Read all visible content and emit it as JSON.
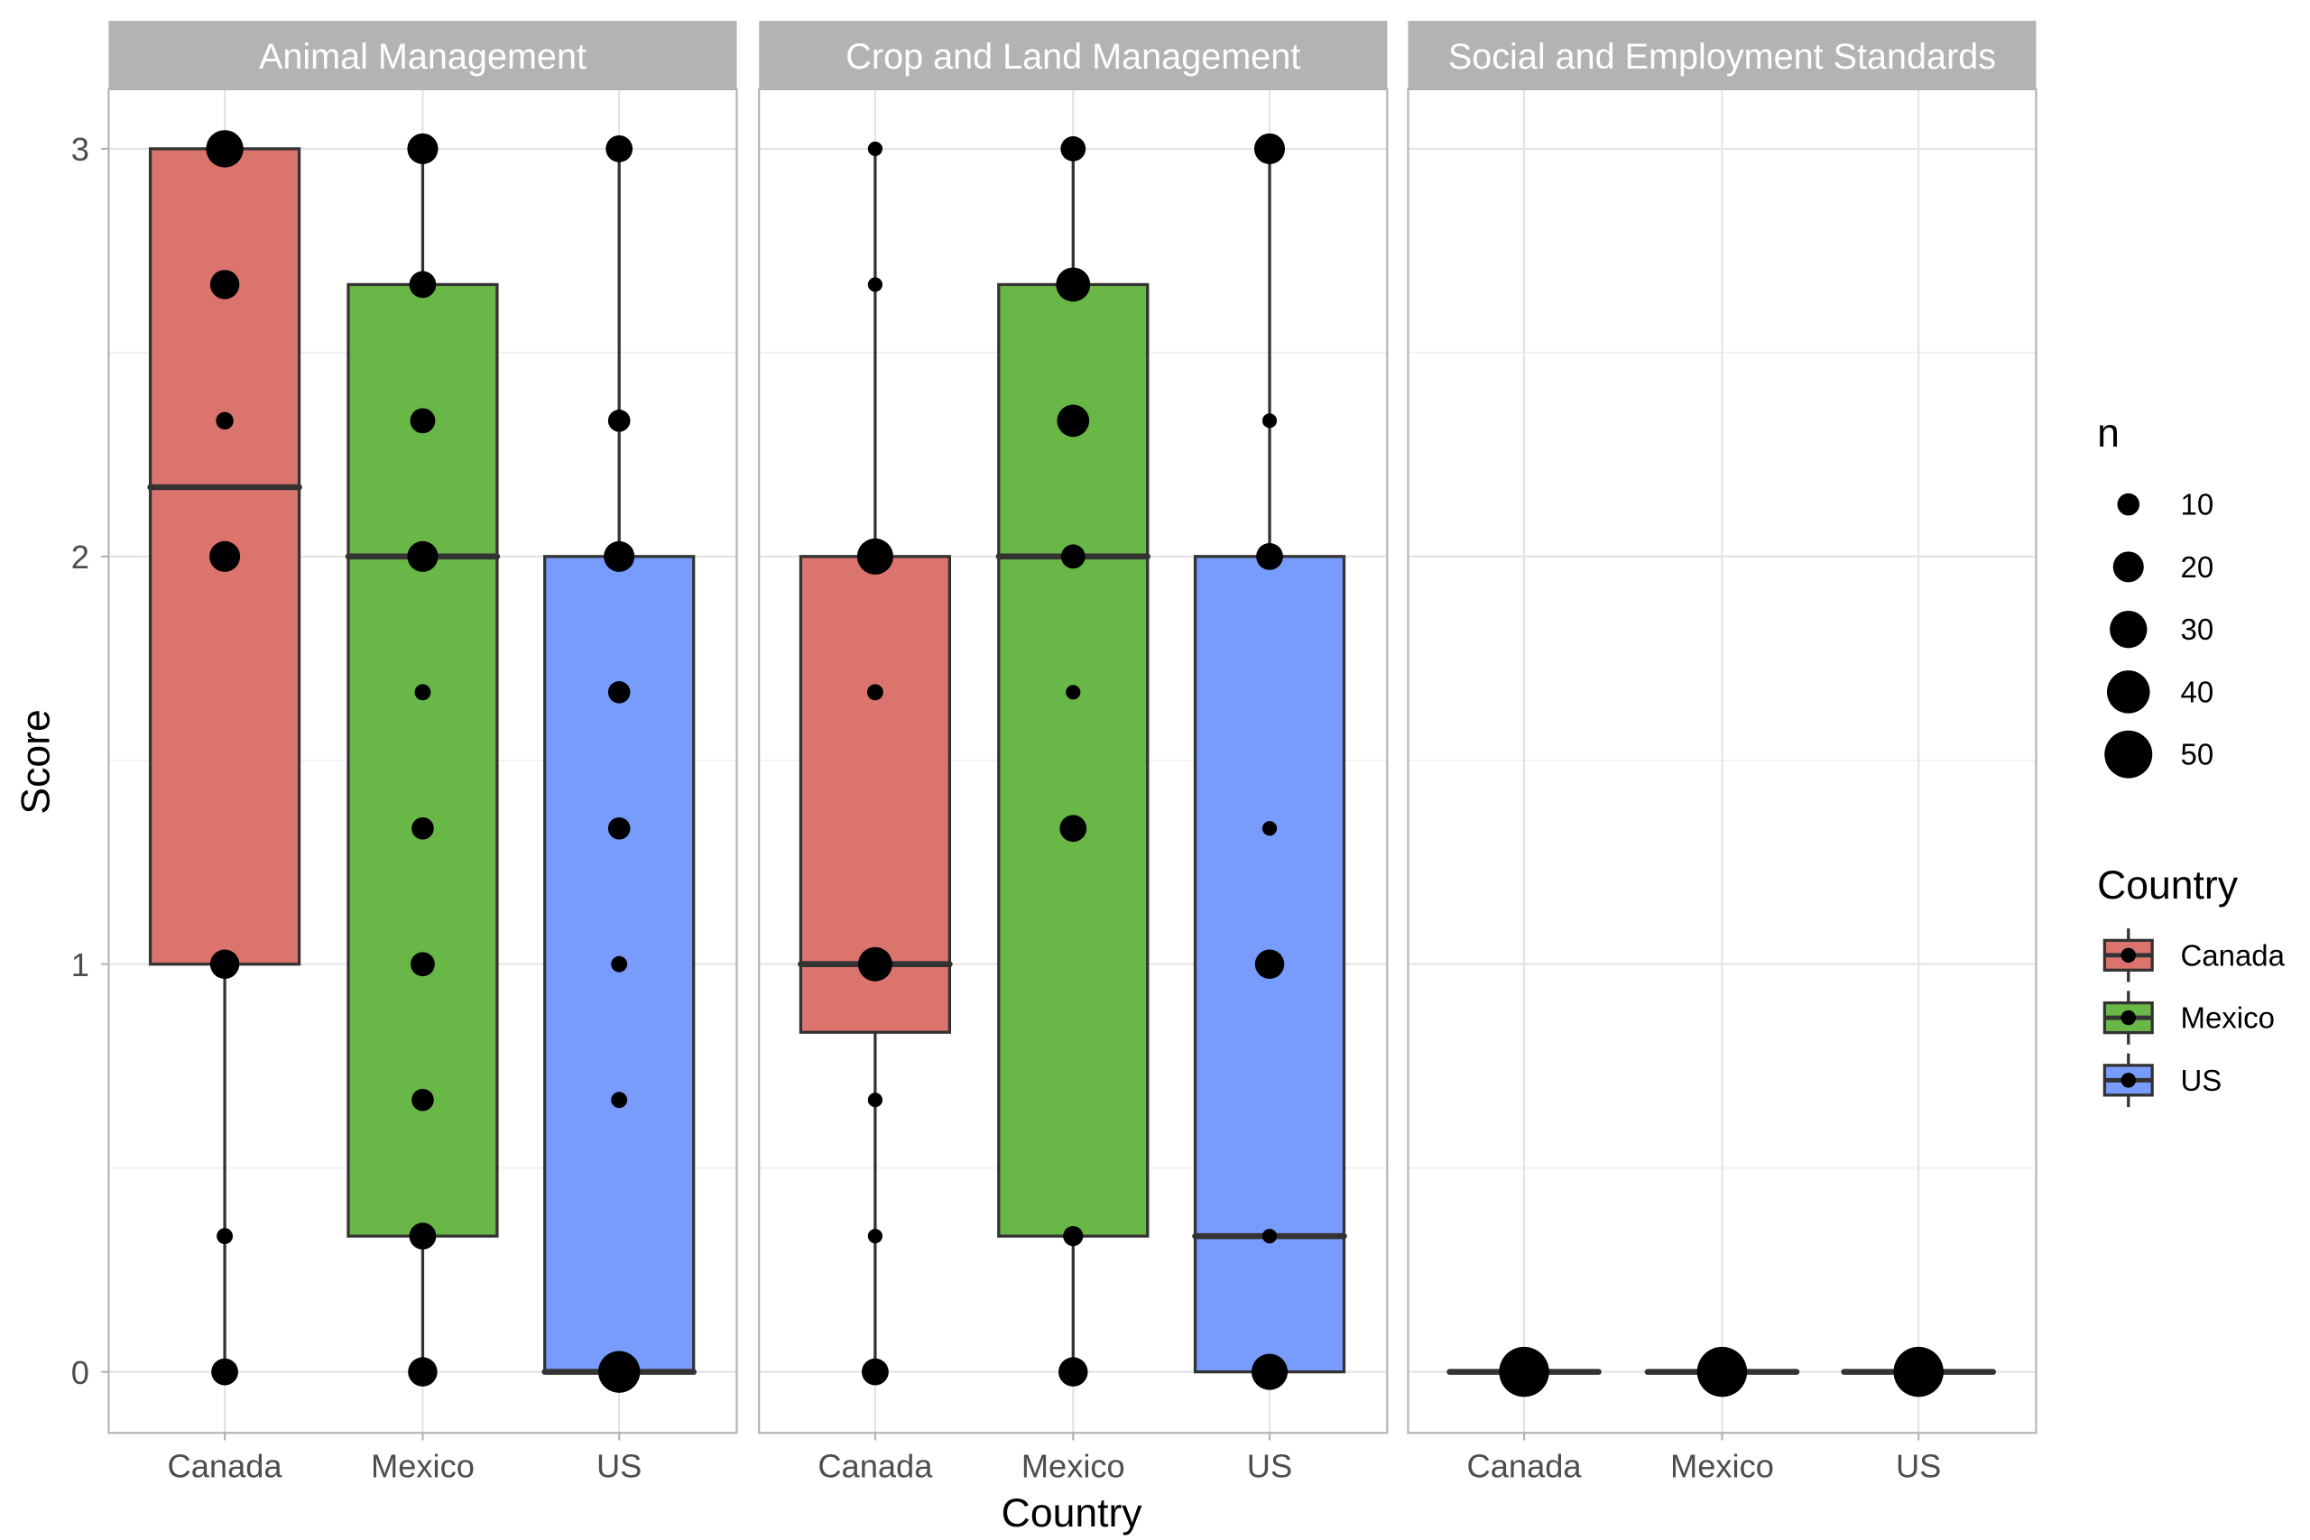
{
  "chart_data": {
    "type": "boxplot",
    "title": "",
    "xlabel": "Country",
    "ylabel": "Score",
    "ylim": [
      -0.15,
      3.15
    ],
    "yticks": [
      0,
      1,
      2,
      3
    ],
    "yticklabels": [
      "0",
      "1",
      "2",
      "3"
    ],
    "grid": true,
    "categories": [
      "Canada",
      "Mexico",
      "US"
    ],
    "colors": {
      "Canada": "#dc746e",
      "Mexico": "#69b746",
      "US": "#779cfb"
    },
    "facets": [
      {
        "name": "Animal Management",
        "boxes": [
          {
            "country": "Canada",
            "min": 0,
            "q1": 1,
            "median": 2.17,
            "q3": 3,
            "max": 3,
            "points": [
              {
                "y": 3,
                "n": 30
              },
              {
                "y": 2.667,
                "n": 18
              },
              {
                "y": 2.333,
                "n": 6
              },
              {
                "y": 2,
                "n": 20
              },
              {
                "y": 1,
                "n": 18
              },
              {
                "y": 0.333,
                "n": 5
              },
              {
                "y": 0,
                "n": 15
              }
            ]
          },
          {
            "country": "Mexico",
            "min": 0,
            "q1": 0.333,
            "median": 2,
            "q3": 2.667,
            "max": 3,
            "points": [
              {
                "y": 3,
                "n": 20
              },
              {
                "y": 2.667,
                "n": 15
              },
              {
                "y": 2.333,
                "n": 13
              },
              {
                "y": 2,
                "n": 20
              },
              {
                "y": 1.667,
                "n": 5
              },
              {
                "y": 1.333,
                "n": 10
              },
              {
                "y": 1,
                "n": 12
              },
              {
                "y": 0.667,
                "n": 10
              },
              {
                "y": 0.333,
                "n": 15
              },
              {
                "y": 0,
                "n": 18
              }
            ]
          },
          {
            "country": "US",
            "min": 0,
            "q1": 0,
            "median": 0,
            "q3": 2,
            "max": 3,
            "points": [
              {
                "y": 3,
                "n": 15
              },
              {
                "y": 2.333,
                "n": 10
              },
              {
                "y": 2,
                "n": 20
              },
              {
                "y": 1.667,
                "n": 10
              },
              {
                "y": 1.333,
                "n": 10
              },
              {
                "y": 1,
                "n": 5
              },
              {
                "y": 0.667,
                "n": 5
              },
              {
                "y": 0,
                "n": 38
              }
            ]
          }
        ]
      },
      {
        "name": "Crop and Land Management",
        "boxes": [
          {
            "country": "Canada",
            "min": 0,
            "q1": 0.833,
            "median": 1,
            "q3": 2,
            "max": 3,
            "points": [
              {
                "y": 3,
                "n": 4
              },
              {
                "y": 2.667,
                "n": 4
              },
              {
                "y": 2,
                "n": 28
              },
              {
                "y": 1.667,
                "n": 5
              },
              {
                "y": 1,
                "n": 25
              },
              {
                "y": 0.667,
                "n": 4
              },
              {
                "y": 0.333,
                "n": 4
              },
              {
                "y": 0,
                "n": 15
              }
            ]
          },
          {
            "country": "Mexico",
            "min": 0,
            "q1": 0.333,
            "median": 2,
            "q3": 2.667,
            "max": 3,
            "points": [
              {
                "y": 3,
                "n": 13
              },
              {
                "y": 2.667,
                "n": 25
              },
              {
                "y": 2.333,
                "n": 22
              },
              {
                "y": 2,
                "n": 12
              },
              {
                "y": 1.667,
                "n": 4
              },
              {
                "y": 1.333,
                "n": 15
              },
              {
                "y": 0.333,
                "n": 8
              },
              {
                "y": 0,
                "n": 18
              }
            ]
          },
          {
            "country": "US",
            "min": 0,
            "q1": 0,
            "median": 0.333,
            "q3": 2,
            "max": 3,
            "points": [
              {
                "y": 3,
                "n": 20
              },
              {
                "y": 2.333,
                "n": 4
              },
              {
                "y": 2,
                "n": 15
              },
              {
                "y": 1.333,
                "n": 4
              },
              {
                "y": 1,
                "n": 18
              },
              {
                "y": 0.333,
                "n": 4
              },
              {
                "y": 0,
                "n": 28
              }
            ]
          }
        ]
      },
      {
        "name": "Social and Employment Standards",
        "boxes": [
          {
            "country": "Canada",
            "min": 0,
            "q1": 0,
            "median": 0,
            "q3": 0,
            "max": 0,
            "points": [
              {
                "y": 0,
                "n": 55
              }
            ]
          },
          {
            "country": "Mexico",
            "min": 0,
            "q1": 0,
            "median": 0,
            "q3": 0,
            "max": 0,
            "points": [
              {
                "y": 0,
                "n": 55
              }
            ]
          },
          {
            "country": "US",
            "min": 0,
            "q1": 0,
            "median": 0,
            "q3": 0,
            "max": 0,
            "points": [
              {
                "y": 0,
                "n": 55
              }
            ]
          }
        ]
      }
    ],
    "legend": {
      "size": {
        "title": "n",
        "values": [
          10,
          20,
          30,
          40,
          50
        ],
        "labels": [
          "10",
          "20",
          "30",
          "40",
          "50"
        ]
      },
      "fill": {
        "title": "Country",
        "labels": [
          "Canada",
          "Mexico",
          "US"
        ]
      },
      "position": "right"
    }
  }
}
